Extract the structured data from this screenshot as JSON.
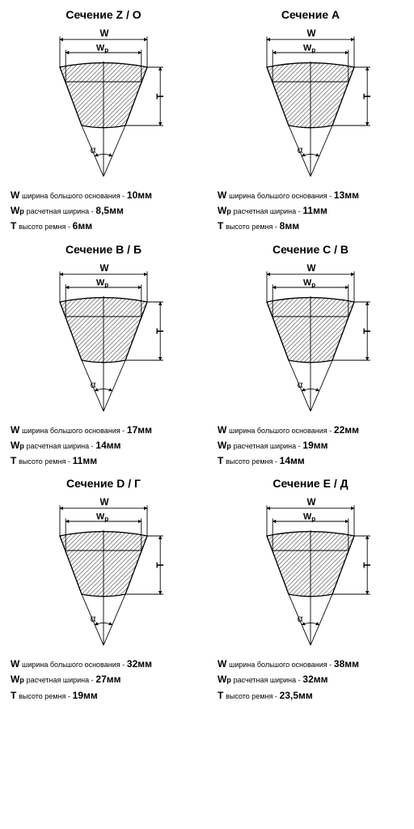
{
  "labels": {
    "w_desc": "ширина большого основания -",
    "wp_desc": "расчетная ширина -",
    "t_desc": "высото ремня -",
    "unit": "мм",
    "W": "W",
    "Wp": "Wp",
    "T": "T",
    "alpha": "α"
  },
  "style": {
    "background": "#ffffff",
    "line_color": "#000000",
    "hatch_color": "#7a7a7a",
    "title_fontsize": 14,
    "spec_fontsize": 10,
    "diagram_width": 180,
    "diagram_height": 200
  },
  "sections": [
    {
      "title": "Сечение  Z / O",
      "W": "10",
      "Wp": "8,5",
      "T": "6"
    },
    {
      "title": "Сечение  A",
      "W": "13",
      "Wp": "11",
      "T": "8"
    },
    {
      "title": "Сечение  B / Б",
      "W": "17",
      "Wp": "14",
      "T": "11"
    },
    {
      "title": "Сечение  C / В",
      "W": "22",
      "Wp": "19",
      "T": "14"
    },
    {
      "title": "Сечение  D / Г",
      "W": "32",
      "Wp": "27",
      "T": "19"
    },
    {
      "title": "Сечение  E / Д",
      "W": "38",
      "Wp": "32",
      "T": "23,5"
    }
  ]
}
